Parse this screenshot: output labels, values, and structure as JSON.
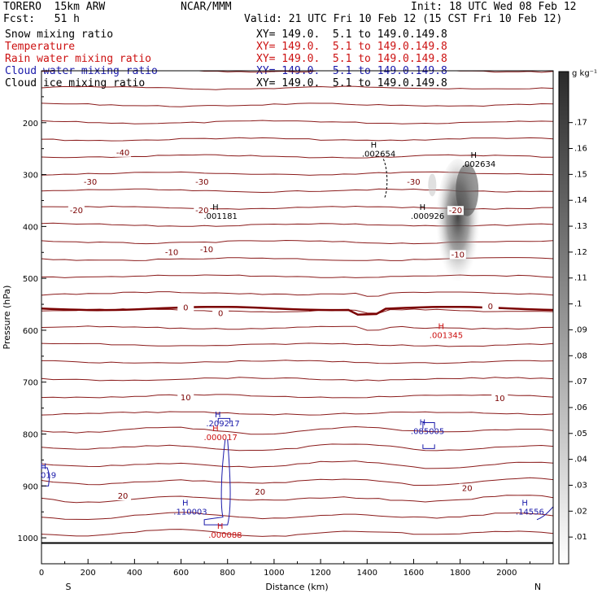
{
  "header": {
    "line1_left": "TORERO  15km ARW",
    "line1_mid": "NCAR/MMM",
    "line1_right": "Init: 18 UTC Wed 08 Feb 12",
    "line2_left": "Fcst:   51 h",
    "line2_right": "Valid: 21 UTC Fri 10 Feb 12 (15 CST Fri 10 Feb 12)",
    "fields": [
      {
        "name": "Snow mixing ratio",
        "xy": "XY= 149.0.  5.1 to 149.0.149.8",
        "color": "#000000"
      },
      {
        "name": "Temperature",
        "xy": "XY= 149.0.  5.1 to 149.0.149.8",
        "color": "#cc1111"
      },
      {
        "name": "Rain water mixing ratio",
        "xy": "XY= 149.0.  5.1 to 149.0.149.8",
        "color": "#cc1111"
      },
      {
        "name": "Cloud water mixing ratio",
        "xy": "XY= 149.0.  5.1 to 149.0.149.8",
        "color": "#1a1aaa"
      },
      {
        "name": "Cloud ice mixing ratio",
        "xy": "XY= 149.0.  5.1 to 149.0.149.8",
        "color": "#000000"
      }
    ]
  },
  "chart_data": {
    "type": "contour-cross-section",
    "xlabel": "Distance (km)",
    "ylabel": "Pressure (hPa)",
    "xlim": [
      0,
      2200
    ],
    "ylim": [
      1050,
      100
    ],
    "xticks": [
      0,
      200,
      400,
      600,
      800,
      1000,
      1200,
      1400,
      1600,
      1800,
      2000
    ],
    "yticks": [
      200,
      300,
      400,
      500,
      600,
      700,
      800,
      900,
      1000
    ],
    "left_end_label": "S",
    "right_end_label": "N",
    "colorbar": {
      "unit": "g kg⁻¹",
      "levels": [
        ".01",
        ".02",
        ".03",
        ".04",
        ".05",
        ".06",
        ".07",
        ".08",
        ".09",
        ".1",
        ".11",
        ".12",
        ".13",
        ".14",
        ".15",
        ".16",
        ".17"
      ]
    },
    "temperature_contour_labels": [
      {
        "text": "-40",
        "x": 350,
        "p": 258
      },
      {
        "text": "-30",
        "x": 210,
        "p": 315
      },
      {
        "text": "-30",
        "x": 690,
        "p": 315
      },
      {
        "text": "-30",
        "x": 1600,
        "p": 315
      },
      {
        "text": "-20",
        "x": 150,
        "p": 370
      },
      {
        "text": "-20",
        "x": 690,
        "p": 370
      },
      {
        "text": "-20",
        "x": 1780,
        "p": 370
      },
      {
        "text": "-10",
        "x": 560,
        "p": 450
      },
      {
        "text": "-10",
        "x": 710,
        "p": 445
      },
      {
        "text": "-10",
        "x": 1790,
        "p": 455
      },
      {
        "text": "0",
        "x": 620,
        "p": 557
      },
      {
        "text": "0",
        "x": 770,
        "p": 568
      },
      {
        "text": "0",
        "x": 1930,
        "p": 555
      },
      {
        "text": "10",
        "x": 620,
        "p": 730
      },
      {
        "text": "10",
        "x": 1970,
        "p": 732
      },
      {
        "text": "20",
        "x": 350,
        "p": 920
      },
      {
        "text": "20",
        "x": 940,
        "p": 912
      },
      {
        "text": "20",
        "x": 1830,
        "p": 905
      }
    ],
    "maxima_labels": [
      {
        "text": ".002654",
        "x": 1450,
        "p": 265,
        "color": "#000000"
      },
      {
        "text": ".002634",
        "x": 1880,
        "p": 285,
        "color": "#000000"
      },
      {
        "text": ".001181",
        "x": 770,
        "p": 385,
        "color": "#000000"
      },
      {
        "text": ".000926",
        "x": 1660,
        "p": 385,
        "color": "#000000"
      },
      {
        "text": ".001345",
        "x": 1740,
        "p": 615,
        "color": "#cc1111"
      },
      {
        "text": ".209217",
        "x": 780,
        "p": 785,
        "color": "#1a1aaa"
      },
      {
        "text": ".000017",
        "x": 770,
        "p": 812,
        "color": "#cc1111"
      },
      {
        "text": ".085005",
        "x": 1660,
        "p": 800,
        "color": "#1a1aaa"
      },
      {
        "text": ".110003",
        "x": 640,
        "p": 955,
        "color": "#1a1aaa"
      },
      {
        "text": ".000088",
        "x": 790,
        "p": 1000,
        "color": "#cc1111"
      },
      {
        "text": ".14556",
        "x": 2100,
        "p": 955,
        "color": "#1a1aaa"
      },
      {
        "text": "019",
        "x": 30,
        "p": 885,
        "color": "#1a1aaa"
      }
    ],
    "freezing_level_hpa": 558,
    "surface_pressure_hpa": 1010
  }
}
